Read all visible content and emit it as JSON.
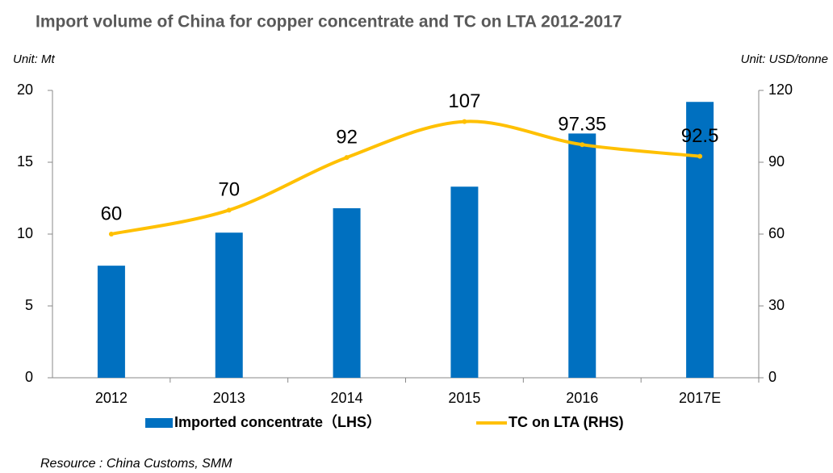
{
  "chart_data": {
    "type": "bar-line",
    "title": "Import volume of China for copper concentrate and TC on LTA 2012-2017",
    "y_label": "Unit: Mt",
    "y2_label": "Unit: USD/tonne",
    "categories": [
      "2012",
      "2013",
      "2014",
      "2015",
      "2016",
      "2017E"
    ],
    "series": [
      {
        "name": "Imported concentrate（LHS）",
        "type": "bar",
        "color": "#0070c0",
        "values": [
          7.8,
          10.1,
          11.8,
          13.3,
          17.0,
          19.2
        ]
      },
      {
        "name": "TC on LTA (RHS)",
        "type": "line",
        "axis": "y2",
        "color": "#ffc000",
        "values": [
          60,
          70,
          92,
          107,
          97.35,
          92.5
        ]
      }
    ],
    "ylim": [
      0,
      20
    ],
    "yticks": [
      0,
      5,
      10,
      15,
      20
    ],
    "y2lim": [
      0,
      120
    ],
    "y2ticks": [
      0,
      30,
      60,
      90,
      120
    ],
    "source": "Resource : China Customs, SMM"
  }
}
